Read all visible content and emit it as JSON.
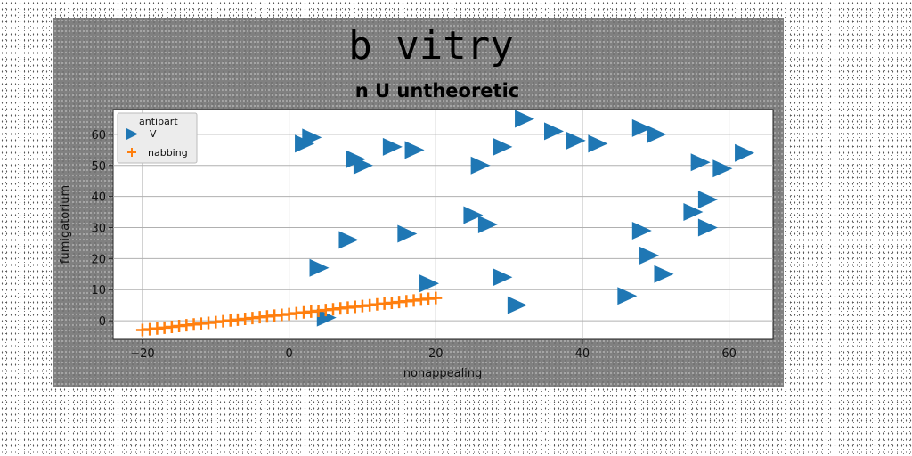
{
  "chart_data": {
    "type": "scatter",
    "title": "b vitry",
    "subtitle": "n U untheoretic",
    "xlabel": "nonappealing",
    "ylabel": "fumigatorium",
    "xlim": [
      -24,
      66
    ],
    "ylim": [
      -6,
      68
    ],
    "xticks": [
      -20,
      0,
      20,
      40,
      60
    ],
    "yticks": [
      0,
      10,
      20,
      30,
      40,
      50,
      60
    ],
    "grid": true,
    "legend": {
      "title": "antipart",
      "placement": "top-left"
    },
    "series": [
      {
        "name": "V",
        "marker": "triangle-right",
        "color": "#1f77b4",
        "points": [
          [
            2,
            57
          ],
          [
            3,
            59
          ],
          [
            4,
            17
          ],
          [
            5,
            1
          ],
          [
            9,
            52
          ],
          [
            10,
            50
          ],
          [
            8,
            26
          ],
          [
            14,
            56
          ],
          [
            17,
            55
          ],
          [
            16,
            28
          ],
          [
            19,
            12
          ],
          [
            25,
            34
          ],
          [
            27,
            31
          ],
          [
            26,
            50
          ],
          [
            29,
            56
          ],
          [
            29,
            14
          ],
          [
            31,
            5
          ],
          [
            32,
            65
          ],
          [
            36,
            61
          ],
          [
            39,
            58
          ],
          [
            42,
            57
          ],
          [
            46,
            8
          ],
          [
            48,
            62
          ],
          [
            48,
            29
          ],
          [
            49,
            21
          ],
          [
            50,
            60
          ],
          [
            51,
            15
          ],
          [
            55,
            35
          ],
          [
            56,
            51
          ],
          [
            57,
            39
          ],
          [
            57,
            30
          ],
          [
            59,
            49
          ],
          [
            62,
            54
          ]
        ]
      },
      {
        "name": "nabbing",
        "marker": "plus",
        "color": "#ff7f0e",
        "x_range": [
          -20,
          20
        ],
        "y_range": [
          -3,
          7.3
        ],
        "count": 41
      }
    ]
  }
}
